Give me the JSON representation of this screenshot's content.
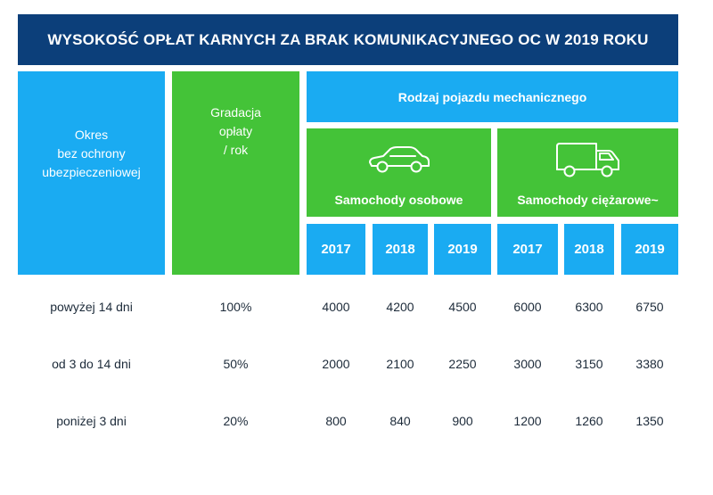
{
  "title": "WYSOKOŚĆ OPŁAT KARNYCH ZA BRAK KOMUNIKACYJNEGO OC W 2019 ROKU",
  "headers": {
    "period": "Okres\nbez ochrony\nubezpieczeniowej",
    "gradation": "Gradacja\nopłaty\n/ rok",
    "vehicle_type": "Rodzaj pojazdu mechanicznego",
    "cars": "Samochody osobowe",
    "trucks": "Samochody ciężarowe~",
    "years": [
      "2017",
      "2018",
      "2019",
      "2017",
      "2018",
      "2019"
    ]
  },
  "icons": {
    "cars": "car-icon",
    "trucks": "truck-icon"
  },
  "colors": {
    "title_bg": "#0c3f7a",
    "blue": "#1aabf2",
    "green": "#44c338"
  },
  "rows": [
    {
      "label": "powyżej 14 dni",
      "gradation": "100%",
      "values": [
        "4000",
        "4200",
        "4500",
        "6000",
        "6300",
        "6750"
      ]
    },
    {
      "label": "od 3 do 14 dni",
      "gradation": "50%",
      "values": [
        "2000",
        "2100",
        "2250",
        "3000",
        "3150",
        "3380"
      ]
    },
    {
      "label": "poniżej 3 dni",
      "gradation": "20%",
      "values": [
        "800",
        "840",
        "900",
        "1200",
        "1260",
        "1350"
      ]
    }
  ]
}
